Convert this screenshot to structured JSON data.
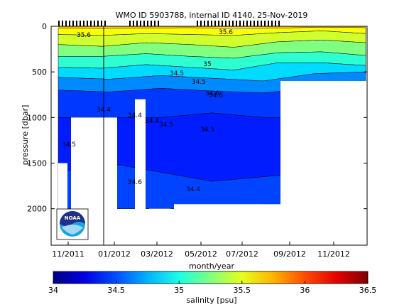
{
  "chart_data": {
    "type": "heatmap",
    "title": "WMO ID 5903788, internal ID 4140, 25-Nov-2019",
    "xlabel": "month/year",
    "ylabel": "pressure [dbar]",
    "x_ticks": [
      "11/2011",
      "01/2012",
      "03/2012",
      "05/2012",
      "07/2012",
      "09/2012",
      "11/2012"
    ],
    "y_ticks": [
      0,
      500,
      1000,
      1500,
      2000
    ],
    "ylim": [
      2400,
      0
    ],
    "colorbar": {
      "label": "salinity [psu]",
      "ticks": [
        34,
        34.5,
        35,
        35.5,
        36,
        36.5
      ],
      "range": [
        34,
        36.5
      ],
      "colormap": "jet"
    },
    "contour_labels": [
      "35.6",
      "35.6",
      "35",
      "34.4",
      "34.4",
      "34.4",
      "34.5",
      "34.5",
      "34.5",
      "34.6",
      "34.6",
      "34.4",
      "34.5",
      "34.5",
      "34.6"
    ],
    "layers": [
      {
        "salinity": 35.55,
        "depth": [
          20,
          25,
          20,
          15,
          30,
          20,
          10,
          15
        ]
      },
      {
        "salinity": 35.45,
        "depth": [
          90,
          100,
          80,
          90,
          100,
          70,
          50,
          80
        ]
      },
      {
        "salinity": 35.25,
        "depth": [
          200,
          220,
          180,
          200,
          230,
          170,
          150,
          180
        ]
      },
      {
        "salinity": 35.05,
        "depth": [
          330,
          330,
          300,
          330,
          350,
          290,
          280,
          320
        ]
      },
      {
        "salinity": 34.85,
        "depth": [
          450,
          460,
          420,
          450,
          480,
          400,
          400,
          430
        ]
      },
      {
        "salinity": 34.65,
        "depth": [
          560,
          580,
          540,
          570,
          600,
          520,
          500
        ]
      },
      {
        "salinity": 34.45,
        "depth": [
          700,
          720,
          680,
          710,
          730,
          680,
          620
        ]
      },
      {
        "salinity": 34.38,
        "depth": [
          1000,
          1000,
          1000,
          950,
          1000,
          1000,
          800
        ]
      },
      {
        "salinity": 34.48,
        "depth": [
          1600,
          1500,
          1600,
          1700,
          1650,
          1600,
          1500
        ]
      },
      {
        "salinity": 34.58,
        "depth": [
          2000,
          2000,
          2000,
          2000,
          1950,
          1950,
          1900
        ]
      }
    ]
  },
  "noaa_logo_text": "NOAA",
  "colors": {
    "colormap_stops": [
      "#00008f",
      "#0000ff",
      "#007fff",
      "#00ffff",
      "#7fff7f",
      "#ffff00",
      "#ff7f00",
      "#ff0000",
      "#7f0000"
    ]
  }
}
